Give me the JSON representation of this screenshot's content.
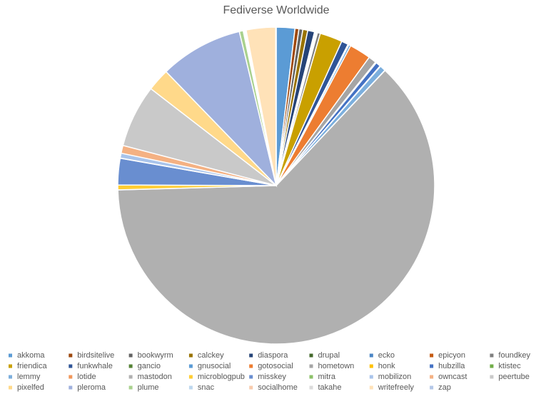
{
  "chart_data": {
    "type": "pie",
    "title": "Fediverse Worldwide",
    "categories": [
      "akkoma",
      "birdsitelive",
      "bookwyrm",
      "calckey",
      "diaspora",
      "drupal",
      "ecko",
      "epicyon",
      "foundkey",
      "friendica",
      "funkwhale",
      "gancio",
      "gnusocial",
      "gotosocial",
      "hometown",
      "honk",
      "hubzilla",
      "ktistec",
      "lemmy",
      "lotide",
      "mastodon",
      "microblogpub",
      "misskey",
      "mitra",
      "mobilizon",
      "owncast",
      "peertube",
      "pixelfed",
      "pleroma",
      "plume",
      "snac",
      "socialhome",
      "takahe",
      "writefreely",
      "zap"
    ],
    "values": [
      1.9,
      0.4,
      0.4,
      0.5,
      0.7,
      0.1,
      0.1,
      0.1,
      0.3,
      2.3,
      0.7,
      0.1,
      0.2,
      2.2,
      0.8,
      0.1,
      0.5,
      0.05,
      0.6,
      0.02,
      62.6,
      0.5,
      2.7,
      0.02,
      0.5,
      0.8,
      6.4,
      2.3,
      8.5,
      0.4,
      0.1,
      0.1,
      0.1,
      3,
      0.05
    ],
    "colors": [
      "#5b9bd5",
      "#9e480e",
      "#636363",
      "#997300",
      "#264478",
      "#43682b",
      "#4a86c5",
      "#c55a11",
      "#7f7f7f",
      "#c9a000",
      "#2f5597",
      "#548235",
      "#5b9bd5",
      "#ed7d31",
      "#a5a5a5",
      "#ffc000",
      "#4472c4",
      "#70ad47",
      "#7cafdd",
      "#f1975a",
      "#b0b0b0",
      "#ffcd33",
      "#698ed0",
      "#8cc168",
      "#a9c4eb",
      "#f4b183",
      "#c9c9c9",
      "#ffd98a",
      "#9fb0dd",
      "#a9d18e",
      "#bdd7ee",
      "#f8cbad",
      "#dbdbdb",
      "#ffe2b8",
      "#b4c7e7"
    ],
    "legend": "bottom"
  }
}
